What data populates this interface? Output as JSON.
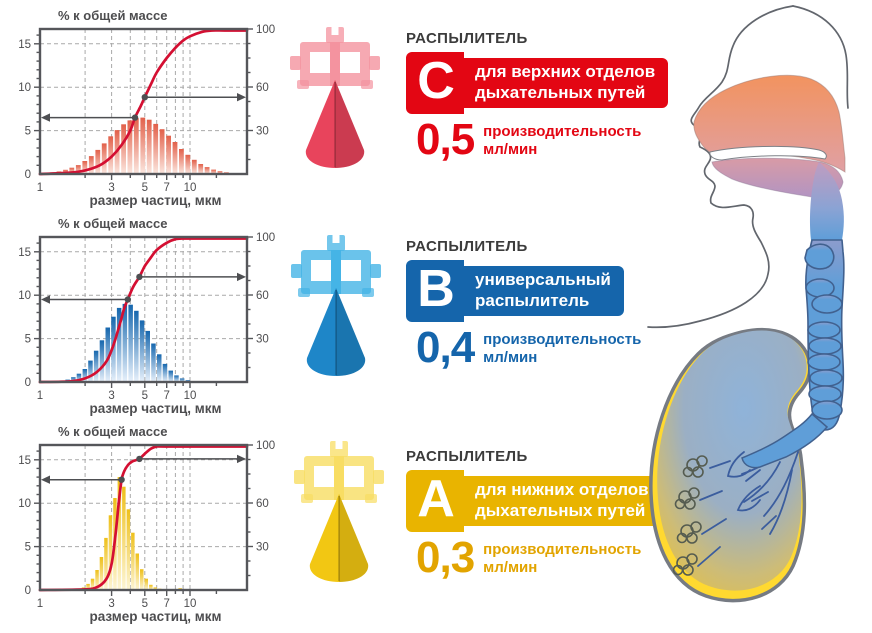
{
  "charts_common": {
    "title": "% к общей массе",
    "xlabel": "размер частиц, мкм",
    "x_tick_labels": [
      1,
      3,
      5,
      7,
      10
    ],
    "x_minor_ticks": [
      2,
      3,
      4,
      5,
      6,
      7,
      8,
      9,
      10,
      15
    ],
    "grid_x": [
      2,
      3,
      4,
      5,
      6,
      7,
      8,
      9,
      10
    ],
    "grid_y": [
      5,
      10,
      15
    ],
    "y_left_ticks": [
      0,
      5,
      10,
      15
    ],
    "y_right_ticks": [
      30,
      60,
      100
    ],
    "y_left_max": 16.7,
    "x_max": 24,
    "axis_color": "#55565a",
    "label_color": "#4d4d4f",
    "grid_color": "#a9a9a9",
    "curve_color": "#d40f32",
    "arrow_color": "#4e4f52"
  },
  "chart_data": [
    {
      "id": "C",
      "type": "histogram+cumulative",
      "nebulizer": "РАСПЫЛИТЕЛЬ C",
      "bar_color_top": "#e2604a",
      "bar_color_bottom": "#fbe7df",
      "bars": [
        [
          1.1,
          0.1
        ],
        [
          1.21,
          0.18
        ],
        [
          1.34,
          0.3
        ],
        [
          1.48,
          0.48
        ],
        [
          1.63,
          0.72
        ],
        [
          1.8,
          1.03
        ],
        [
          1.99,
          1.5
        ],
        [
          2.2,
          2.06
        ],
        [
          2.43,
          2.78
        ],
        [
          2.68,
          3.52
        ],
        [
          2.96,
          4.34
        ],
        [
          3.27,
          5.06
        ],
        [
          3.61,
          5.72
        ],
        [
          3.98,
          6.17
        ],
        [
          4.39,
          6.44
        ],
        [
          4.85,
          6.5
        ],
        [
          5.35,
          6.25
        ],
        [
          5.91,
          5.77
        ],
        [
          6.52,
          5.16
        ],
        [
          7.2,
          4.41
        ],
        [
          7.95,
          3.69
        ],
        [
          8.77,
          2.88
        ],
        [
          9.68,
          2.21
        ],
        [
          10.69,
          1.63
        ],
        [
          11.8,
          1.15
        ],
        [
          13.02,
          0.8
        ],
        [
          14.37,
          0.51
        ],
        [
          15.86,
          0.32
        ],
        [
          17.51,
          0.2
        ],
        [
          19.33,
          0.12
        ]
      ],
      "cumulative_curve": [
        [
          1.0,
          0
        ],
        [
          1.6,
          1
        ],
        [
          2.0,
          2.5
        ],
        [
          2.5,
          6
        ],
        [
          3.0,
          12
        ],
        [
          3.5,
          20
        ],
        [
          4.0,
          30
        ],
        [
          4.3,
          39
        ],
        [
          4.7,
          47
        ],
        [
          5.0,
          53
        ],
        [
          5.5,
          62
        ],
        [
          6.0,
          70
        ],
        [
          7.0,
          80
        ],
        [
          8.0,
          87
        ],
        [
          9.0,
          92
        ],
        [
          10.0,
          95
        ],
        [
          12.0,
          98
        ],
        [
          14.0,
          99.3
        ],
        [
          17.0,
          100
        ],
        [
          24.0,
          100
        ]
      ],
      "dots": {
        "left": {
          "x": 4.3,
          "y": 6.5
        },
        "right": {
          "x": 5.0,
          "y": 8.85
        }
      }
    },
    {
      "id": "B",
      "type": "histogram+cumulative",
      "nebulizer": "РАСПЫЛИТЕЛЬ B",
      "bar_color_top": "#1667ae",
      "bar_color_bottom": "#e8f1fb",
      "bars": [
        [
          1.4,
          0.12
        ],
        [
          1.53,
          0.28
        ],
        [
          1.67,
          0.55
        ],
        [
          1.82,
          0.96
        ],
        [
          1.99,
          1.5
        ],
        [
          2.17,
          2.46
        ],
        [
          2.37,
          3.6
        ],
        [
          2.59,
          4.8
        ],
        [
          2.83,
          6.28
        ],
        [
          3.09,
          7.52
        ],
        [
          3.37,
          8.53
        ],
        [
          3.68,
          9.0
        ],
        [
          4.02,
          8.9
        ],
        [
          4.39,
          8.2
        ],
        [
          4.79,
          7.1
        ],
        [
          5.23,
          5.88
        ],
        [
          5.71,
          4.43
        ],
        [
          6.24,
          3.19
        ],
        [
          6.81,
          2.08
        ],
        [
          7.44,
          1.31
        ],
        [
          8.12,
          0.76
        ],
        [
          8.87,
          0.42
        ],
        [
          9.68,
          0.22
        ],
        [
          10.57,
          0.11
        ],
        [
          11.54,
          0.05
        ]
      ],
      "cumulative_curve": [
        [
          1.0,
          0
        ],
        [
          1.6,
          0.5
        ],
        [
          2.0,
          2.5
        ],
        [
          2.4,
          7
        ],
        [
          2.8,
          15
        ],
        [
          3.1,
          26
        ],
        [
          3.45,
          42
        ],
        [
          3.65,
          51
        ],
        [
          3.85,
          57
        ],
        [
          4.2,
          66
        ],
        [
          4.6,
          72.5
        ],
        [
          5.0,
          80
        ],
        [
          5.5,
          86
        ],
        [
          6.0,
          91
        ],
        [
          7.0,
          96
        ],
        [
          8.0,
          98.5
        ],
        [
          9.0,
          99.5
        ],
        [
          10.0,
          100
        ],
        [
          24.0,
          100
        ]
      ],
      "dots": {
        "left": {
          "x": 3.85,
          "y": 9.5
        },
        "right": {
          "x": 4.6,
          "y": 12.1
        }
      }
    },
    {
      "id": "A",
      "type": "histogram+cumulative",
      "nebulizer": "РАСПЫЛИТЕЛЬ A",
      "bar_color_top": "#eec01a",
      "bar_color_bottom": "#fdf5d4",
      "bars": [
        [
          1.7,
          0.05
        ],
        [
          1.82,
          0.1
        ],
        [
          1.95,
          0.3
        ],
        [
          2.09,
          0.7
        ],
        [
          2.24,
          1.3
        ],
        [
          2.4,
          2.3
        ],
        [
          2.57,
          3.8
        ],
        [
          2.75,
          6.0
        ],
        [
          2.95,
          8.6
        ],
        [
          3.16,
          10.6
        ],
        [
          3.38,
          13.0
        ],
        [
          3.62,
          11.9
        ],
        [
          3.88,
          9.3
        ],
        [
          4.16,
          6.6
        ],
        [
          4.45,
          4.2
        ],
        [
          4.77,
          2.4
        ],
        [
          5.11,
          1.3
        ],
        [
          5.48,
          0.6
        ],
        [
          5.87,
          0.3
        ],
        [
          6.29,
          0.15
        ],
        [
          6.74,
          0.1
        ],
        [
          7.6,
          0.1
        ],
        [
          8.6,
          0.22
        ],
        [
          10.3,
          0.1
        ]
      ],
      "cumulative_curve": [
        [
          1.0,
          0
        ],
        [
          2.0,
          0.5
        ],
        [
          2.4,
          2
        ],
        [
          2.7,
          6
        ],
        [
          2.9,
          12
        ],
        [
          3.05,
          22
        ],
        [
          3.2,
          40
        ],
        [
          3.35,
          60
        ],
        [
          3.5,
          76
        ],
        [
          3.65,
          82
        ],
        [
          3.85,
          86
        ],
        [
          4.1,
          88.5
        ],
        [
          4.6,
          90.5
        ],
        [
          5.0,
          94
        ],
        [
          5.5,
          97.5
        ],
        [
          6.0,
          99
        ],
        [
          6.8,
          100
        ],
        [
          24.0,
          100
        ]
      ],
      "dots": {
        "left": {
          "x": 3.5,
          "y": 12.7
        },
        "right": {
          "x": 4.6,
          "y": 15.1
        }
      }
    }
  ],
  "nebulizers": [
    {
      "id": "C",
      "heading": "РАСПЫЛИТЕЛЬ",
      "letter": "C",
      "desc_line1": "для верхних отделов",
      "desc_line2": "дыхательных путей",
      "rate": "0,5",
      "rate_caption": "производительность",
      "rate_unit": "мл/мин",
      "banner_color": "#e30613",
      "number_color": "#e30613",
      "icon_light": "#f4939f",
      "icon_dark": "#e8445c"
    },
    {
      "id": "B",
      "heading": "РАСПЫЛИТЕЛЬ",
      "letter": "B",
      "desc_line1": "универсальный",
      "desc_line2": "распылитель",
      "rate": "0,4",
      "rate_caption": "производительность",
      "rate_unit": "мл/мин",
      "banner_color": "#1565ab",
      "number_color": "#1565ab",
      "icon_light": "#45b4e6",
      "icon_dark": "#1e86c8"
    },
    {
      "id": "A",
      "heading": "РАСПЫЛИТЕЛЬ",
      "letter": "A",
      "desc_line1": "для нижних отделов",
      "desc_line2": "дыхательных путей",
      "rate": "0,3",
      "rate_caption": "производительность",
      "rate_unit": "мл/мин",
      "banner_color": "#e9b400",
      "number_color": "#e2a400",
      "icon_light": "#f8dd63",
      "icon_dark": "#f2c713"
    }
  ],
  "anatomy": {
    "upper_airway_color": "#f2935f",
    "mid_airway_color": "#c08a9b",
    "lower_airway_color": "#5f9ed8",
    "lung_rim_color": "#ffd930",
    "lung_center_color": "#8fb3d9",
    "outline_color": "#62666d"
  }
}
